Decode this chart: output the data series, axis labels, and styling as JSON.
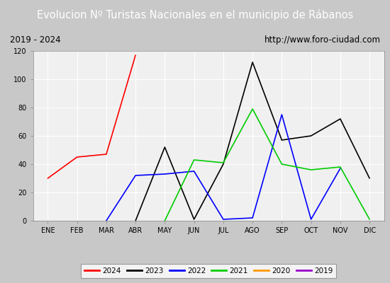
{
  "title": "Evolucion Nº Turistas Nacionales en el municipio de Rábanos",
  "subtitle_left": "2019 - 2024",
  "subtitle_right": "http://www.foro-ciudad.com",
  "months": [
    "ENE",
    "FEB",
    "MAR",
    "ABR",
    "MAY",
    "JUN",
    "JUL",
    "AGO",
    "SEP",
    "OCT",
    "NOV",
    "DIC"
  ],
  "ylim": [
    0,
    120
  ],
  "yticks": [
    0,
    20,
    40,
    60,
    80,
    100,
    120
  ],
  "series": {
    "2024": {
      "color": "#ff0000",
      "data": [
        30,
        45,
        47,
        117,
        null,
        null,
        null,
        null,
        null,
        null,
        null,
        null
      ]
    },
    "2023": {
      "color": "#000000",
      "data": [
        null,
        null,
        null,
        0,
        52,
        1,
        40,
        112,
        57,
        60,
        72,
        30
      ]
    },
    "2022": {
      "color": "#0000ff",
      "data": [
        null,
        null,
        0,
        32,
        33,
        35,
        1,
        2,
        75,
        1,
        37,
        null
      ]
    },
    "2021": {
      "color": "#00cc00",
      "data": [
        null,
        null,
        null,
        null,
        0,
        43,
        41,
        79,
        40,
        36,
        38,
        1
      ]
    },
    "2020": {
      "color": "#ff9900",
      "data": [
        null,
        null,
        null,
        null,
        null,
        null,
        null,
        null,
        null,
        null,
        null,
        null
      ]
    },
    "2019": {
      "color": "#9900cc",
      "data": [
        null,
        null,
        null,
        null,
        null,
        null,
        null,
        null,
        null,
        null,
        null,
        null
      ]
    }
  },
  "legend_order": [
    "2024",
    "2023",
    "2022",
    "2021",
    "2020",
    "2019"
  ],
  "title_bg_color": "#3366cc",
  "title_text_color": "#ffffff",
  "plot_bg_color": "#f0f0f0",
  "subtitle_bg_color": "#e0e0e0",
  "outer_bg_color": "#c8c8c8",
  "grid_color": "#ffffff",
  "title_fontsize": 10.5,
  "subtitle_fontsize": 8.5,
  "tick_fontsize": 7,
  "legend_fontsize": 7.5
}
